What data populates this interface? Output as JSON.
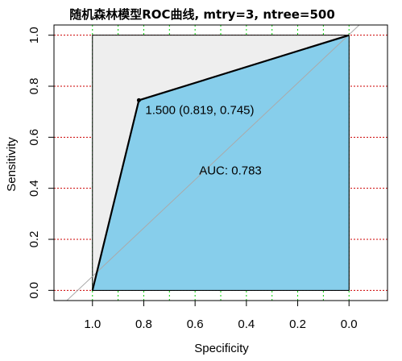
{
  "chart_data": {
    "type": "line",
    "title": "随机森林模型ROC曲线, mtry=3, ntree=500",
    "xlabel": "Specificity",
    "ylabel": "Sensitivity",
    "xlim": [
      1.15,
      -0.15
    ],
    "ylim": [
      -0.04,
      1.04
    ],
    "x_ticks": [
      1.0,
      0.8,
      0.6,
      0.4,
      0.2,
      0.0
    ],
    "x_tick_labels": [
      "1.0",
      "0.8",
      "0.6",
      "0.4",
      "0.2",
      "0.0"
    ],
    "y_ticks": [
      0.0,
      0.2,
      0.4,
      0.6,
      0.8,
      1.0
    ],
    "y_tick_labels": [
      "0.0",
      "0.2",
      "0.4",
      "0.6",
      "0.8",
      "1.0"
    ],
    "x_grid": [
      1.0,
      0.9,
      0.8,
      0.7,
      0.6,
      0.5,
      0.4,
      0.3,
      0.2,
      0.1,
      0.0
    ],
    "y_grid": [
      0.0,
      0.2,
      0.4,
      0.6,
      0.8,
      1.0
    ],
    "series": [
      {
        "specificity": [
          1.0,
          0.819,
          0.0
        ],
        "sensitivity": [
          0.0,
          0.745,
          1.0
        ]
      }
    ],
    "threshold_point": {
      "specificity": 0.819,
      "sensitivity": 0.745,
      "label": "1.500 (0.819, 0.745)"
    },
    "auc_label": "AUC: 0.783",
    "auc_label_position": {
      "specificity": 0.5,
      "sensitivity": 0.47
    },
    "colors": {
      "auc_fill": "#87ceeb",
      "max_area_fill": "#eeeeee",
      "curve": "#000000",
      "diagonal": "#aaaaaa",
      "x_grid": "#00cc00",
      "y_grid": "#cc0000"
    }
  }
}
